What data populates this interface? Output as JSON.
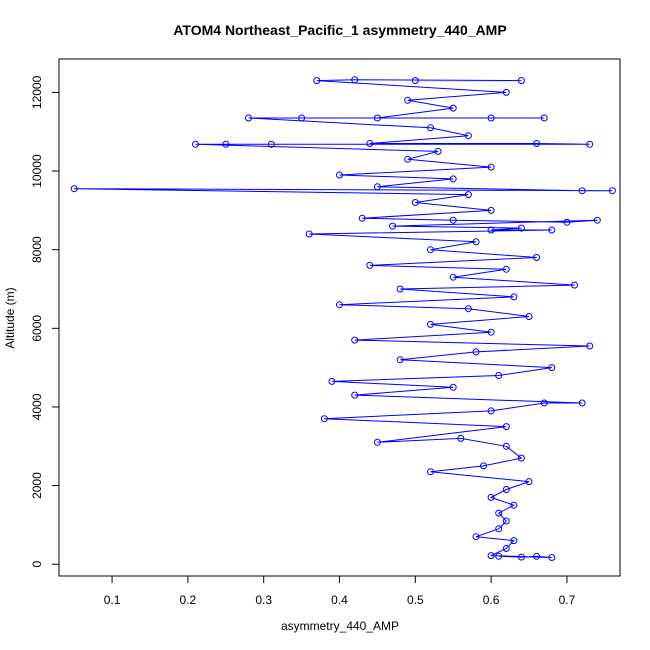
{
  "chart_data": {
    "type": "scatter",
    "title": "ATOM4 Northeast_Pacific_1 asymmetry_440_AMP",
    "xlabel": "asymmetry_440_AMP",
    "ylabel": "Altitude (m)",
    "xlim": [
      0.03,
      0.77
    ],
    "ylim": [
      -300,
      12850
    ],
    "x_ticks": [
      0.1,
      0.2,
      0.3,
      0.4,
      0.5,
      0.6,
      0.7
    ],
    "x_tick_labels": [
      "0.1",
      "0.2",
      "0.3",
      "0.4",
      "0.5",
      "0.6",
      "0.7"
    ],
    "y_ticks": [
      0,
      2000,
      4000,
      6000,
      8000,
      10000,
      12000
    ],
    "y_tick_labels": [
      "0",
      "2000",
      "4000",
      "6000",
      "8000",
      "10000",
      "12000"
    ],
    "grid": false,
    "series_color": "#0000ff",
    "marker": "open-circle",
    "connected": true,
    "points": [
      {
        "x": 0.61,
        "y": 200
      },
      {
        "x": 0.64,
        "y": 180
      },
      {
        "x": 0.66,
        "y": 200
      },
      {
        "x": 0.68,
        "y": 170
      },
      {
        "x": 0.6,
        "y": 220
      },
      {
        "x": 0.62,
        "y": 400
      },
      {
        "x": 0.63,
        "y": 600
      },
      {
        "x": 0.58,
        "y": 700
      },
      {
        "x": 0.61,
        "y": 900
      },
      {
        "x": 0.62,
        "y": 1100
      },
      {
        "x": 0.61,
        "y": 1300
      },
      {
        "x": 0.63,
        "y": 1500
      },
      {
        "x": 0.6,
        "y": 1700
      },
      {
        "x": 0.62,
        "y": 1900
      },
      {
        "x": 0.65,
        "y": 2100
      },
      {
        "x": 0.52,
        "y": 2350
      },
      {
        "x": 0.59,
        "y": 2500
      },
      {
        "x": 0.64,
        "y": 2700
      },
      {
        "x": 0.62,
        "y": 3000
      },
      {
        "x": 0.56,
        "y": 3200
      },
      {
        "x": 0.45,
        "y": 3100
      },
      {
        "x": 0.62,
        "y": 3500
      },
      {
        "x": 0.38,
        "y": 3700
      },
      {
        "x": 0.6,
        "y": 3900
      },
      {
        "x": 0.67,
        "y": 4100
      },
      {
        "x": 0.72,
        "y": 4100
      },
      {
        "x": 0.42,
        "y": 4300
      },
      {
        "x": 0.55,
        "y": 4500
      },
      {
        "x": 0.39,
        "y": 4650
      },
      {
        "x": 0.61,
        "y": 4800
      },
      {
        "x": 0.68,
        "y": 5000
      },
      {
        "x": 0.48,
        "y": 5200
      },
      {
        "x": 0.58,
        "y": 5400
      },
      {
        "x": 0.73,
        "y": 5550
      },
      {
        "x": 0.42,
        "y": 5700
      },
      {
        "x": 0.6,
        "y": 5900
      },
      {
        "x": 0.52,
        "y": 6100
      },
      {
        "x": 0.65,
        "y": 6300
      },
      {
        "x": 0.57,
        "y": 6500
      },
      {
        "x": 0.4,
        "y": 6600
      },
      {
        "x": 0.63,
        "y": 6800
      },
      {
        "x": 0.48,
        "y": 7000
      },
      {
        "x": 0.71,
        "y": 7100
      },
      {
        "x": 0.55,
        "y": 7300
      },
      {
        "x": 0.62,
        "y": 7500
      },
      {
        "x": 0.44,
        "y": 7600
      },
      {
        "x": 0.66,
        "y": 7800
      },
      {
        "x": 0.52,
        "y": 8000
      },
      {
        "x": 0.58,
        "y": 8200
      },
      {
        "x": 0.36,
        "y": 8400
      },
      {
        "x": 0.68,
        "y": 8500
      },
      {
        "x": 0.6,
        "y": 8500
      },
      {
        "x": 0.64,
        "y": 8550
      },
      {
        "x": 0.47,
        "y": 8600
      },
      {
        "x": 0.74,
        "y": 8750
      },
      {
        "x": 0.7,
        "y": 8700
      },
      {
        "x": 0.55,
        "y": 8750
      },
      {
        "x": 0.43,
        "y": 8800
      },
      {
        "x": 0.6,
        "y": 9000
      },
      {
        "x": 0.5,
        "y": 9200
      },
      {
        "x": 0.57,
        "y": 9400
      },
      {
        "x": 0.05,
        "y": 9550
      },
      {
        "x": 0.76,
        "y": 9500
      },
      {
        "x": 0.72,
        "y": 9500
      },
      {
        "x": 0.45,
        "y": 9600
      },
      {
        "x": 0.55,
        "y": 9800
      },
      {
        "x": 0.4,
        "y": 9900
      },
      {
        "x": 0.6,
        "y": 10100
      },
      {
        "x": 0.49,
        "y": 10300
      },
      {
        "x": 0.53,
        "y": 10500
      },
      {
        "x": 0.21,
        "y": 10680
      },
      {
        "x": 0.25,
        "y": 10680
      },
      {
        "x": 0.31,
        "y": 10680
      },
      {
        "x": 0.73,
        "y": 10680
      },
      {
        "x": 0.66,
        "y": 10700
      },
      {
        "x": 0.44,
        "y": 10700
      },
      {
        "x": 0.57,
        "y": 10900
      },
      {
        "x": 0.52,
        "y": 11100
      },
      {
        "x": 0.28,
        "y": 11350
      },
      {
        "x": 0.35,
        "y": 11350
      },
      {
        "x": 0.67,
        "y": 11350
      },
      {
        "x": 0.6,
        "y": 11350
      },
      {
        "x": 0.45,
        "y": 11350
      },
      {
        "x": 0.55,
        "y": 11600
      },
      {
        "x": 0.49,
        "y": 11800
      },
      {
        "x": 0.62,
        "y": 12000
      },
      {
        "x": 0.37,
        "y": 12300
      },
      {
        "x": 0.42,
        "y": 12320
      },
      {
        "x": 0.64,
        "y": 12300
      },
      {
        "x": 0.5,
        "y": 12300
      }
    ]
  }
}
